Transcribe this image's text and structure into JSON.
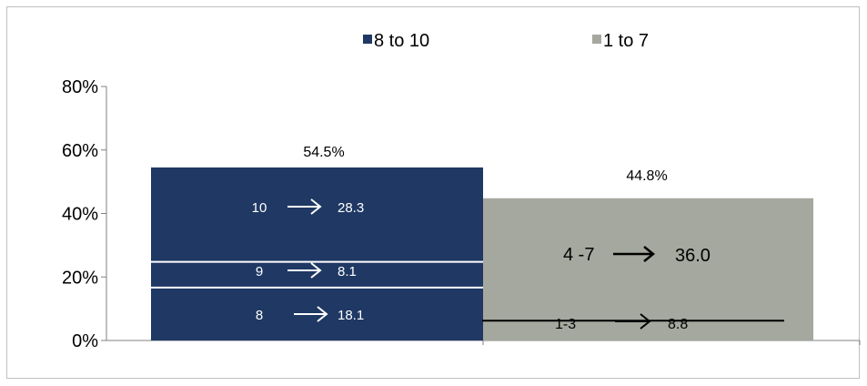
{
  "chart_data": {
    "type": "bar",
    "stacked": true,
    "categories": [
      "8 to 10",
      "1 to 7"
    ],
    "ylim": [
      0,
      80
    ],
    "yticks": [
      "0%",
      "20%",
      "40%",
      "60%",
      "80%"
    ],
    "ytick_values": [
      0,
      20,
      40,
      60,
      80
    ],
    "legend_position": "top",
    "grid": false,
    "series": [
      {
        "name": "8 to 10",
        "color": "#1f3864",
        "total": 54.5,
        "total_label": "54.5%",
        "segments": [
          {
            "label": "8",
            "arrow": "→",
            "value": 18.1,
            "value_label": "18.1"
          },
          {
            "label": "9",
            "arrow": "→",
            "value": 8.1,
            "value_label": "8.1"
          },
          {
            "label": "10",
            "arrow": "→",
            "value": 28.3,
            "value_label": "28.3"
          }
        ]
      },
      {
        "name": "1 to 7",
        "color": "#a5a89e",
        "total": 44.8,
        "total_label": "44.8%",
        "segments": [
          {
            "label": "1-3",
            "arrow": "→",
            "value": 8.8,
            "value_label": "8.8"
          },
          {
            "label": "4 -7",
            "arrow": "→",
            "value": 36.0,
            "value_label": "36.0"
          }
        ]
      }
    ]
  }
}
